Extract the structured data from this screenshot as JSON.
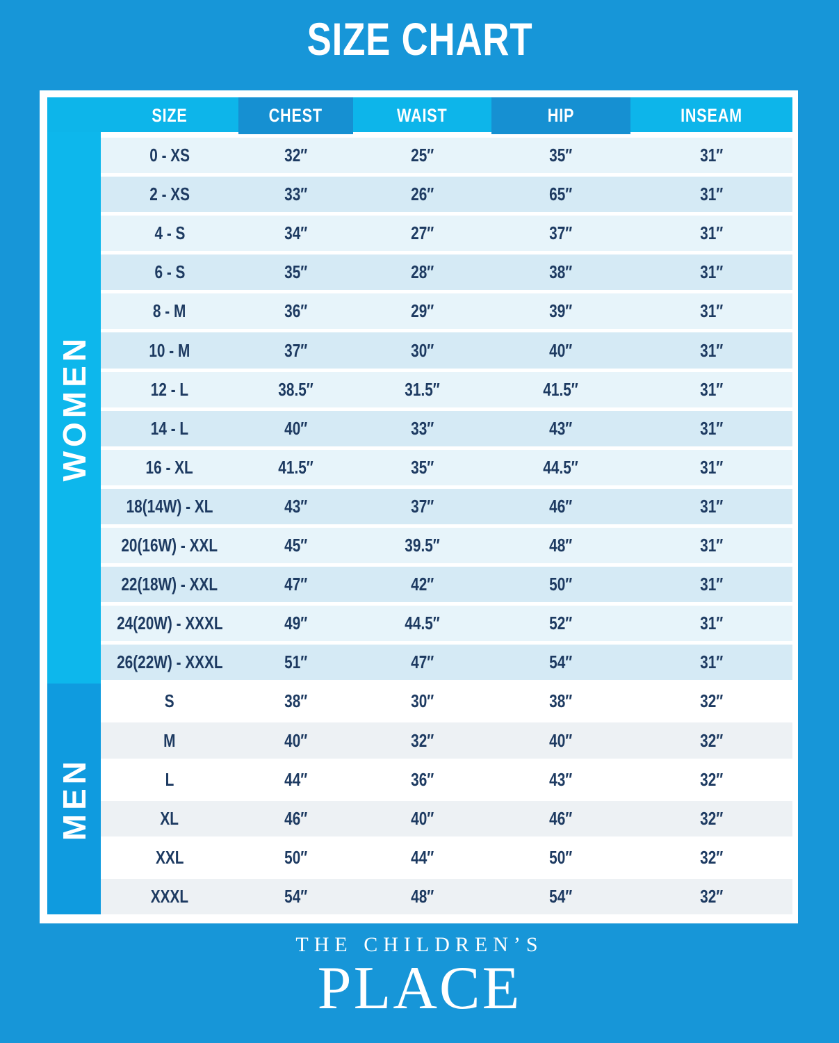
{
  "title": "SIZE CHART",
  "colors": {
    "page_background": "#1796d8",
    "header_cyan": "#0db5ea",
    "header_dark_blue": "#1690d2",
    "women_band": "#0db7ec",
    "men_band": "#0f9bdf",
    "women_row_light": "#e7f4fa",
    "women_row_dark": "#d5eaf5",
    "men_row_light": "#ffffff",
    "men_row_dark": "#edf1f4",
    "text_navy": "#1d3a61",
    "white": "#ffffff"
  },
  "table": {
    "columns": [
      "SIZE",
      "CHEST",
      "WAIST",
      "HIP",
      "INSEAM"
    ],
    "sections": [
      {
        "label": "WOMEN",
        "rows": [
          {
            "size": "0 - XS",
            "chest": "32″",
            "waist": "25″",
            "hip": "35″",
            "inseam": "31″"
          },
          {
            "size": "2 - XS",
            "chest": "33″",
            "waist": "26″",
            "hip": "65″",
            "inseam": "31″"
          },
          {
            "size": "4 - S",
            "chest": "34″",
            "waist": "27″",
            "hip": "37″",
            "inseam": "31″"
          },
          {
            "size": "6 - S",
            "chest": "35″",
            "waist": "28″",
            "hip": "38″",
            "inseam": "31″"
          },
          {
            "size": "8 - M",
            "chest": "36″",
            "waist": "29″",
            "hip": "39″",
            "inseam": "31″"
          },
          {
            "size": "10 - M",
            "chest": "37″",
            "waist": "30″",
            "hip": "40″",
            "inseam": "31″"
          },
          {
            "size": "12 - L",
            "chest": "38.5″",
            "waist": "31.5″",
            "hip": "41.5″",
            "inseam": "31″"
          },
          {
            "size": "14 - L",
            "chest": "40″",
            "waist": "33″",
            "hip": "43″",
            "inseam": "31″"
          },
          {
            "size": "16 - XL",
            "chest": "41.5″",
            "waist": "35″",
            "hip": "44.5″",
            "inseam": "31″"
          },
          {
            "size": "18(14W) - XL",
            "chest": "43″",
            "waist": "37″",
            "hip": "46″",
            "inseam": "31″"
          },
          {
            "size": "20(16W) - XXL",
            "chest": "45″",
            "waist": "39.5″",
            "hip": "48″",
            "inseam": "31″"
          },
          {
            "size": "22(18W) - XXL",
            "chest": "47″",
            "waist": "42″",
            "hip": "50″",
            "inseam": "31″"
          },
          {
            "size": "24(20W) - XXXL",
            "chest": "49″",
            "waist": "44.5″",
            "hip": "52″",
            "inseam": "31″"
          },
          {
            "size": "26(22W) - XXXL",
            "chest": "51″",
            "waist": "47″",
            "hip": "54″",
            "inseam": "31″"
          }
        ]
      },
      {
        "label": "MEN",
        "rows": [
          {
            "size": "S",
            "chest": "38″",
            "waist": "30″",
            "hip": "38″",
            "inseam": "32″"
          },
          {
            "size": "M",
            "chest": "40″",
            "waist": "32″",
            "hip": "40″",
            "inseam": "32″"
          },
          {
            "size": "L",
            "chest": "44″",
            "waist": "36″",
            "hip": "43″",
            "inseam": "32″"
          },
          {
            "size": "XL",
            "chest": "46″",
            "waist": "40″",
            "hip": "46″",
            "inseam": "32″"
          },
          {
            "size": "XXL",
            "chest": "50″",
            "waist": "44″",
            "hip": "50″",
            "inseam": "32″"
          },
          {
            "size": "XXXL",
            "chest": "54″",
            "waist": "48″",
            "hip": "54″",
            "inseam": "32″"
          }
        ]
      }
    ]
  },
  "logo": {
    "line1": "THE CHILDREN’S",
    "line2": "PLACE"
  },
  "chart_data": {
    "type": "table",
    "title": "SIZE CHART",
    "columns": [
      "SIZE",
      "CHEST",
      "WAIST",
      "HIP",
      "INSEAM"
    ],
    "sections": [
      {
        "name": "WOMEN",
        "rows": [
          [
            "0 - XS",
            32,
            25,
            35,
            31
          ],
          [
            "2 - XS",
            33,
            26,
            65,
            31
          ],
          [
            "4 - S",
            34,
            27,
            37,
            31
          ],
          [
            "6 - S",
            35,
            28,
            38,
            31
          ],
          [
            "8 - M",
            36,
            29,
            39,
            31
          ],
          [
            "10 - M",
            37,
            30,
            40,
            31
          ],
          [
            "12 - L",
            38.5,
            31.5,
            41.5,
            31
          ],
          [
            "14 - L",
            40,
            33,
            43,
            31
          ],
          [
            "16 - XL",
            41.5,
            35,
            44.5,
            31
          ],
          [
            "18(14W) - XL",
            43,
            37,
            46,
            31
          ],
          [
            "20(16W) - XXL",
            45,
            39.5,
            48,
            31
          ],
          [
            "22(18W) - XXL",
            47,
            42,
            50,
            31
          ],
          [
            "24(20W) - XXXL",
            49,
            44.5,
            52,
            31
          ],
          [
            "26(22W) - XXXL",
            51,
            47,
            54,
            31
          ]
        ]
      },
      {
        "name": "MEN",
        "rows": [
          [
            "S",
            38,
            30,
            38,
            32
          ],
          [
            "M",
            40,
            32,
            40,
            32
          ],
          [
            "L",
            44,
            36,
            43,
            32
          ],
          [
            "XL",
            46,
            40,
            46,
            32
          ],
          [
            "XXL",
            50,
            44,
            50,
            32
          ],
          [
            "XXXL",
            54,
            48,
            54,
            32
          ]
        ]
      }
    ],
    "units": "inches"
  }
}
